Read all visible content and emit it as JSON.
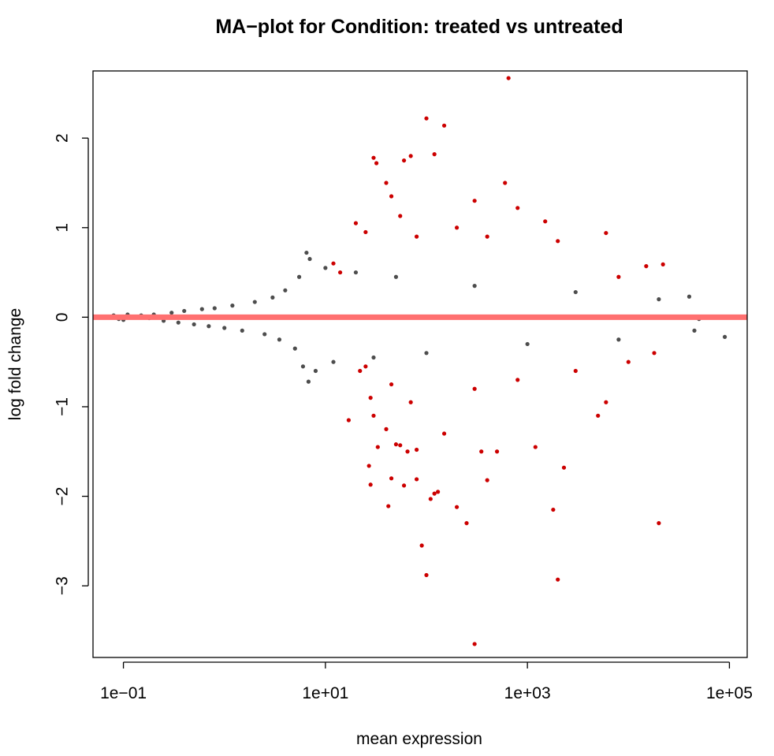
{
  "chart_data": {
    "type": "scatter",
    "title": "MA−plot for Condition: treated vs untreated",
    "xlabel": "mean expression",
    "ylabel": "log fold change",
    "x_scale": "log10",
    "xlim": [
      0.05,
      150000
    ],
    "ylim": [
      -3.8,
      2.75
    ],
    "x_ticks": [
      {
        "value": 0.1,
        "label": "1e−01"
      },
      {
        "value": 10,
        "label": "1e+01"
      },
      {
        "value": 1000,
        "label": "1e+03"
      },
      {
        "value": 100000,
        "label": "1e+05"
      }
    ],
    "y_ticks": [
      {
        "value": -3,
        "label": "−3"
      },
      {
        "value": -2,
        "label": "−2"
      },
      {
        "value": -1,
        "label": "−1"
      },
      {
        "value": 0,
        "label": "0"
      },
      {
        "value": 1,
        "label": "1"
      },
      {
        "value": 2,
        "label": "2"
      }
    ],
    "reference_line": {
      "y": 0,
      "color": "#FF7070"
    },
    "grid": false,
    "series": [
      {
        "color": "#4D4D4D",
        "description_points": "non-significant genes",
        "points": [
          [
            0.08,
            0.02
          ],
          [
            0.09,
            -0.02
          ],
          [
            0.1,
            -0.03
          ],
          [
            0.11,
            0.03
          ],
          [
            0.15,
            0.02
          ],
          [
            0.18,
            -0.01
          ],
          [
            0.2,
            0.03
          ],
          [
            0.25,
            -0.04
          ],
          [
            0.3,
            0.05
          ],
          [
            0.35,
            -0.06
          ],
          [
            0.4,
            0.07
          ],
          [
            0.5,
            -0.08
          ],
          [
            0.6,
            0.09
          ],
          [
            0.7,
            -0.1
          ],
          [
            0.8,
            0.1
          ],
          [
            1.0,
            -0.12
          ],
          [
            1.2,
            0.13
          ],
          [
            1.5,
            -0.15
          ],
          [
            2.0,
            0.17
          ],
          [
            2.5,
            -0.19
          ],
          [
            3.0,
            0.22
          ],
          [
            3.5,
            -0.25
          ],
          [
            4.0,
            0.3
          ],
          [
            5.0,
            -0.35
          ],
          [
            5.5,
            0.45
          ],
          [
            6.0,
            -0.55
          ],
          [
            6.5,
            0.72
          ],
          [
            6.8,
            -0.72
          ],
          [
            7.0,
            0.65
          ],
          [
            8.0,
            -0.6
          ],
          [
            10.0,
            0.55
          ],
          [
            12.0,
            -0.5
          ],
          [
            20.0,
            0.5
          ],
          [
            30.0,
            -0.45
          ],
          [
            50.0,
            0.45
          ],
          [
            100.0,
            -0.4
          ],
          [
            300.0,
            0.35
          ],
          [
            1000.0,
            -0.3
          ],
          [
            3000.0,
            0.28
          ],
          [
            8000.0,
            -0.25
          ],
          [
            20000.0,
            0.2
          ],
          [
            40000.0,
            0.23
          ],
          [
            45000.0,
            -0.15
          ],
          [
            50000.0,
            -0.02
          ],
          [
            90000.0,
            -0.22
          ]
        ]
      },
      {
        "color": "#CC0000",
        "description_points": "significant genes",
        "points": [
          [
            30,
            1.78
          ],
          [
            32,
            1.72
          ],
          [
            40,
            1.5
          ],
          [
            45,
            1.35
          ],
          [
            60,
            1.75
          ],
          [
            70,
            1.8
          ],
          [
            100,
            2.22
          ],
          [
            120,
            1.82
          ],
          [
            150,
            2.14
          ],
          [
            300,
            1.3
          ],
          [
            600,
            1.5
          ],
          [
            650,
            2.67
          ],
          [
            800,
            1.22
          ],
          [
            1500,
            1.07
          ],
          [
            6000,
            0.94
          ],
          [
            15000,
            0.57
          ],
          [
            22000,
            0.59
          ],
          [
            20,
            1.05
          ],
          [
            25,
            0.95
          ],
          [
            55,
            1.13
          ],
          [
            80,
            0.9
          ],
          [
            200,
            1.0
          ],
          [
            400,
            0.9
          ],
          [
            2000,
            0.85
          ],
          [
            8000,
            0.45
          ],
          [
            12,
            0.6
          ],
          [
            14,
            0.5
          ],
          [
            25,
            -0.55
          ],
          [
            22,
            -0.6
          ],
          [
            28,
            -0.9
          ],
          [
            30,
            -1.1
          ],
          [
            33,
            -1.45
          ],
          [
            40,
            -1.25
          ],
          [
            45,
            -1.8
          ],
          [
            50,
            -1.42
          ],
          [
            55,
            -1.43
          ],
          [
            65,
            -1.5
          ],
          [
            80,
            -1.48
          ],
          [
            90,
            -2.55
          ],
          [
            100,
            -2.88
          ],
          [
            110,
            -2.03
          ],
          [
            130,
            -1.95
          ],
          [
            150,
            -1.3
          ],
          [
            200,
            -2.12
          ],
          [
            250,
            -2.3
          ],
          [
            300,
            -3.65
          ],
          [
            350,
            -1.5
          ],
          [
            400,
            -1.82
          ],
          [
            500,
            -1.5
          ],
          [
            1200,
            -1.45
          ],
          [
            1800,
            -2.15
          ],
          [
            2000,
            -2.93
          ],
          [
            2300,
            -1.68
          ],
          [
            5000,
            -1.1
          ],
          [
            6000,
            -0.95
          ],
          [
            20000,
            -2.3
          ],
          [
            27,
            -1.66
          ],
          [
            28,
            -1.87
          ],
          [
            42,
            -2.11
          ],
          [
            60,
            -1.88
          ],
          [
            80,
            -1.81
          ],
          [
            120,
            -1.97
          ],
          [
            17,
            -1.15
          ],
          [
            45,
            -0.75
          ],
          [
            70,
            -0.95
          ],
          [
            300,
            -0.8
          ],
          [
            800,
            -0.7
          ],
          [
            3000,
            -0.6
          ],
          [
            10000,
            -0.5
          ],
          [
            18000,
            -0.4
          ]
        ]
      }
    ]
  }
}
